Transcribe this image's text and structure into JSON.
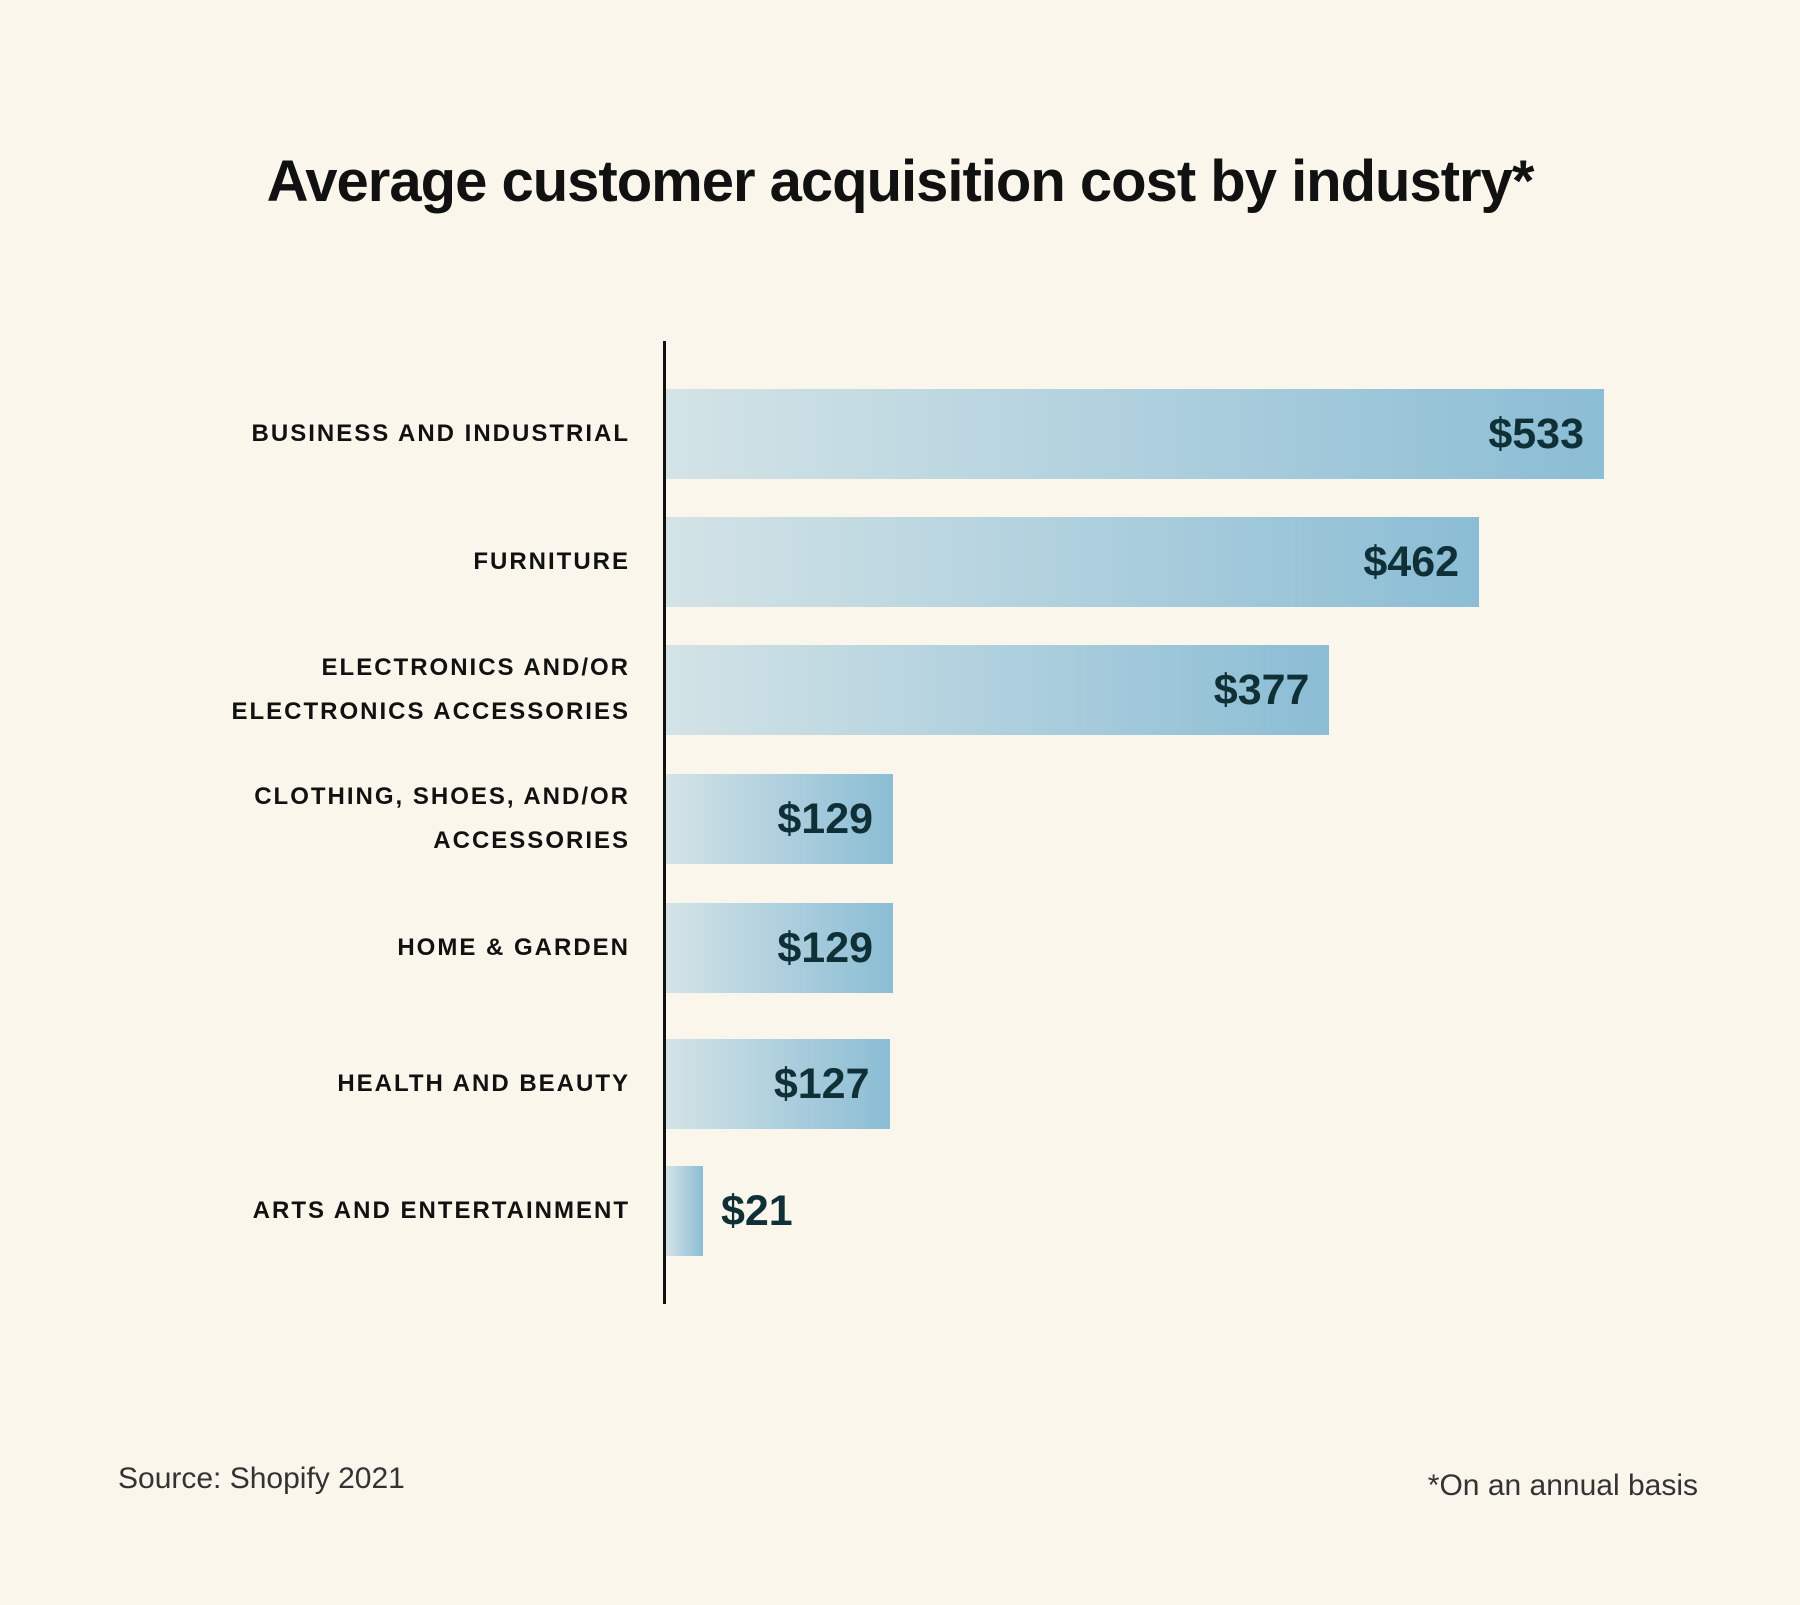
{
  "chart_data": {
    "type": "bar",
    "orientation": "horizontal",
    "title": "Average customer acquisition cost by industry*",
    "categories": [
      "BUSINESS AND INDUSTRIAL",
      "FURNITURE",
      "ELECTRONICS AND/OR ELECTRONICS ACCESSORIES",
      "CLOTHING, SHOES, AND/OR ACCESSORIES",
      "HOME & GARDEN",
      "HEALTH AND BEAUTY",
      "ARTS AND ENTERTAINMENT"
    ],
    "category_lines": [
      [
        "BUSINESS AND INDUSTRIAL"
      ],
      [
        "FURNITURE"
      ],
      [
        "ELECTRONICS AND/OR",
        "ELECTRONICS ACCESSORIES"
      ],
      [
        "CLOTHING, SHOES, AND/OR",
        "ACCESSORIES"
      ],
      [
        "HOME & GARDEN"
      ],
      [
        "HEALTH AND BEAUTY"
      ],
      [
        "ARTS AND ENTERTAINMENT"
      ]
    ],
    "values": [
      533,
      462,
      377,
      129,
      129,
      127,
      21
    ],
    "data_labels": [
      "$533",
      "$462",
      "$377",
      "$129",
      "$129",
      "$127",
      "$21"
    ],
    "xlim": [
      0,
      533
    ],
    "grid": false,
    "colors": {
      "bar_start": "#d3e3e6",
      "bar_end": "#8bbdd5",
      "value_text": "#0e3036",
      "background": "#faf6ec"
    }
  },
  "footer": {
    "source": "Source: Shopify 2021",
    "note": "*On an annual basis"
  }
}
